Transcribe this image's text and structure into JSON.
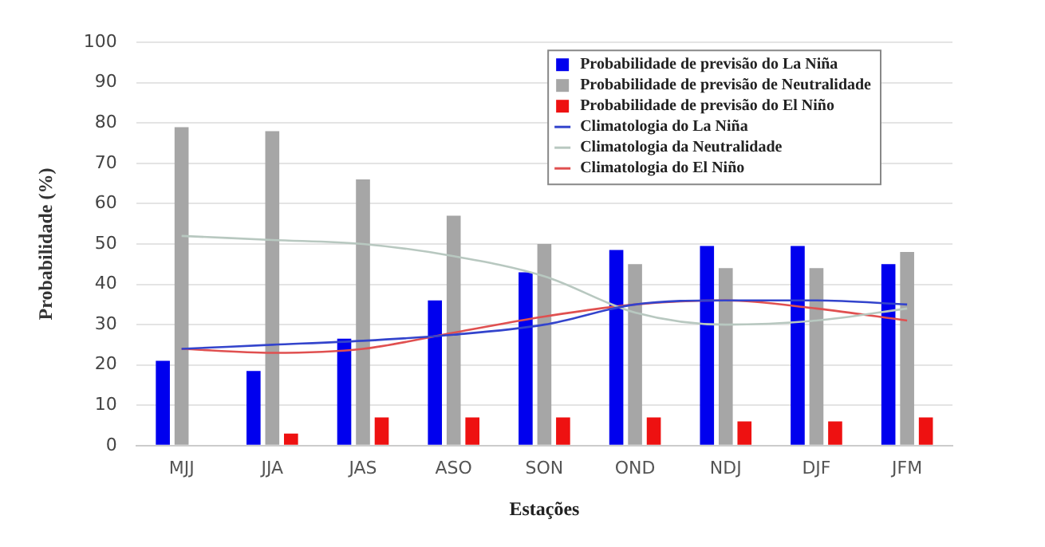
{
  "chart_data": {
    "type": "bar",
    "xlabel": "Estações",
    "ylabel": "Probabilidade (%)",
    "categories": [
      "MJJ",
      "JJA",
      "JAS",
      "ASO",
      "SON",
      "OND",
      "NDJ",
      "DJF",
      "JFM"
    ],
    "series": [
      {
        "name": "Probabilidade de previsão do La Niña",
        "color": "#0000ee",
        "values": [
          21,
          18.5,
          26.5,
          36,
          43,
          48.5,
          49.5,
          49.5,
          45
        ]
      },
      {
        "name": "Probabilidade de previsão de Neutralidade",
        "color": "#a6a6a6",
        "values": [
          79,
          78,
          66,
          57,
          50,
          45,
          44,
          44,
          48
        ]
      },
      {
        "name": "Probabilidade de previsão do El Niño",
        "color": "#ee1111",
        "values": [
          0,
          3,
          7,
          7,
          7,
          7,
          6,
          6,
          7
        ]
      },
      {
        "name": "Climatologia do La Niña",
        "type": "line",
        "color": "#3344cc",
        "values": [
          24,
          25,
          26,
          27.5,
          30,
          35,
          36,
          36,
          35
        ]
      },
      {
        "name": "Climatologia da Neutralidade",
        "type": "line",
        "color": "#b8c8c0",
        "values": [
          52,
          51,
          50,
          47,
          42,
          33,
          30,
          31,
          34
        ]
      },
      {
        "name": "Climatologia do El Niño",
        "type": "line",
        "color": "#e05050",
        "values": [
          24,
          23,
          24,
          28,
          32,
          35,
          36,
          34,
          31
        ]
      }
    ],
    "ylim": [
      0,
      100
    ],
    "yticks": [
      0,
      10,
      20,
      30,
      40,
      50,
      60,
      70,
      80,
      90,
      100
    ],
    "grid": "y",
    "legend": "top right",
    "marker": "none"
  }
}
